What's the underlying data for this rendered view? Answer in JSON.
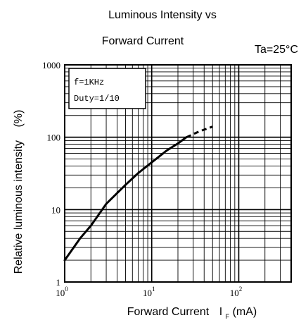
{
  "chart_data": {
    "type": "line",
    "title_lines": [
      "Luminous Intensity vs",
      "Forward Current"
    ],
    "condition": "Ta=25°C",
    "xlabel": "Forward Current",
    "xlabel_symbol": "I",
    "xlabel_subscript": "F",
    "xlabel_unit": "(mA)",
    "ylabel": "Relative luminous intensity",
    "ylabel_unit": "(%)",
    "x_scale": "log",
    "y_scale": "log",
    "xlim": [
      1,
      400
    ],
    "ylim": [
      1,
      1000
    ],
    "x_ticks": [
      {
        "value": 1,
        "base": "10",
        "exp": "0"
      },
      {
        "value": 10,
        "base": "10",
        "exp": "1"
      },
      {
        "value": 100,
        "base": "10",
        "exp": "2"
      }
    ],
    "y_ticks": [
      {
        "value": 1,
        "label": "1"
      },
      {
        "value": 10,
        "label": "10"
      },
      {
        "value": 100,
        "label": "100"
      },
      {
        "value": 1000,
        "label": "1000"
      }
    ],
    "grid": true,
    "legend_lines": [
      "f=1KHz",
      "Duty=1/10"
    ],
    "legend_position": "top-left",
    "series": [
      {
        "style": "solid",
        "x": [
          1,
          1.5,
          2,
          3,
          5,
          7,
          10,
          15,
          20,
          25
        ],
        "y": [
          2,
          4,
          6,
          12,
          22,
          32,
          45,
          66,
          82,
          100
        ]
      },
      {
        "style": "dashed",
        "x": [
          25,
          35,
          50
        ],
        "y": [
          100,
          120,
          140
        ]
      }
    ]
  }
}
